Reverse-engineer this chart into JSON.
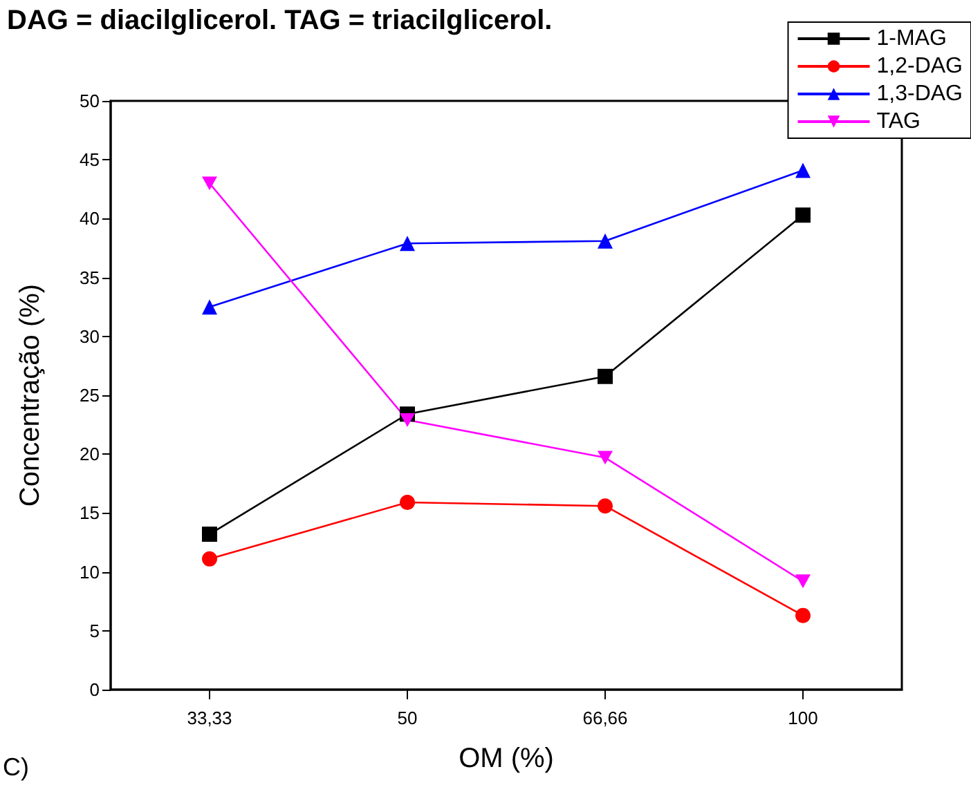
{
  "chart_data": {
    "type": "line",
    "title": "DAG = diacilglicerol. TAG = triacilglicerol.",
    "xlabel": "OM (%)",
    "ylabel": "Concentração (%)",
    "annotations": [
      "C)"
    ],
    "categories": [
      "33,33",
      "50",
      "66,66",
      "100"
    ],
    "series": [
      {
        "name": "1-MAG",
        "color": "#000000",
        "marker": "square",
        "values": [
          13.2,
          23.4,
          26.6,
          40.3
        ]
      },
      {
        "name": "1,2-DAG",
        "color": "#ff0000",
        "marker": "circle",
        "values": [
          11.1,
          15.9,
          15.6,
          6.3
        ]
      },
      {
        "name": "1,3-DAG",
        "color": "#0000ff",
        "marker": "triangle",
        "values": [
          32.5,
          37.9,
          38.1,
          44.1
        ]
      },
      {
        "name": "TAG",
        "color": "#ff00ff",
        "marker": "triangle-down",
        "values": [
          43.0,
          22.9,
          19.7,
          9.2
        ]
      }
    ],
    "ylim": [
      0,
      50
    ],
    "yticks": [
      0,
      5,
      10,
      15,
      20,
      25,
      30,
      35,
      40,
      45,
      50
    ],
    "grid": false,
    "legend": "top right",
    "line_style": "solid"
  }
}
